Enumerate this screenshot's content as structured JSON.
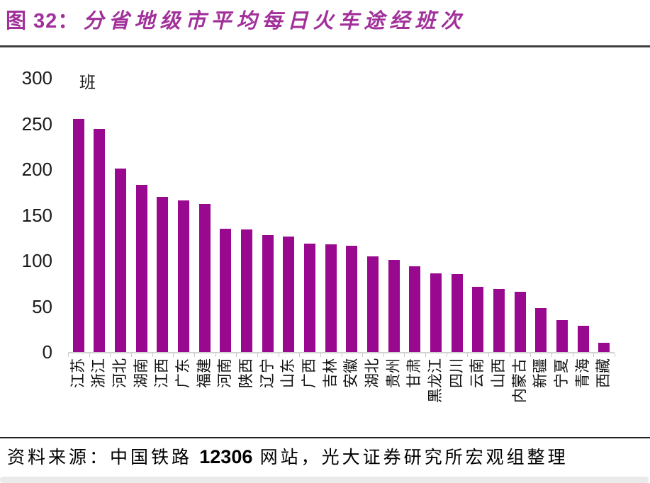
{
  "header": {
    "figure_label": "图 32：",
    "title": "分省地级市平均每日火车途经班次"
  },
  "chart_data": {
    "type": "bar",
    "title": "分省地级市平均每日火车途经班次",
    "ylabel": "班",
    "xlabel": "",
    "categories": [
      "江苏",
      "浙江",
      "河北",
      "湖南",
      "江西",
      "广东",
      "福建",
      "河南",
      "陕西",
      "辽宁",
      "山东",
      "广西",
      "吉林",
      "安徽",
      "湖北",
      "贵州",
      "甘肃",
      "黑龙江",
      "四川",
      "云南",
      "山西",
      "内蒙古",
      "新疆",
      "宁夏",
      "青海",
      "西藏"
    ],
    "values": [
      255,
      244,
      201,
      183,
      170,
      166,
      162,
      135,
      134,
      128,
      126,
      119,
      118,
      116,
      105,
      101,
      94,
      86,
      85,
      71,
      69,
      66,
      48,
      35,
      29,
      10
    ],
    "ylim": [
      0,
      300
    ],
    "yticks": [
      0,
      50,
      100,
      150,
      200,
      250,
      300
    ],
    "grid": false,
    "legend_position": "none",
    "bar_color": "#98098F"
  },
  "footer": {
    "source_prefix": "资料来源：中国铁路 ",
    "source_number": "12306",
    "source_suffix": " 网站，光大证券研究所宏观组整理"
  },
  "colors": {
    "accent_title": "#A1309A",
    "bar": "#98098F",
    "axis_line": "#D2D2D2",
    "text": "#1A1A1A"
  }
}
